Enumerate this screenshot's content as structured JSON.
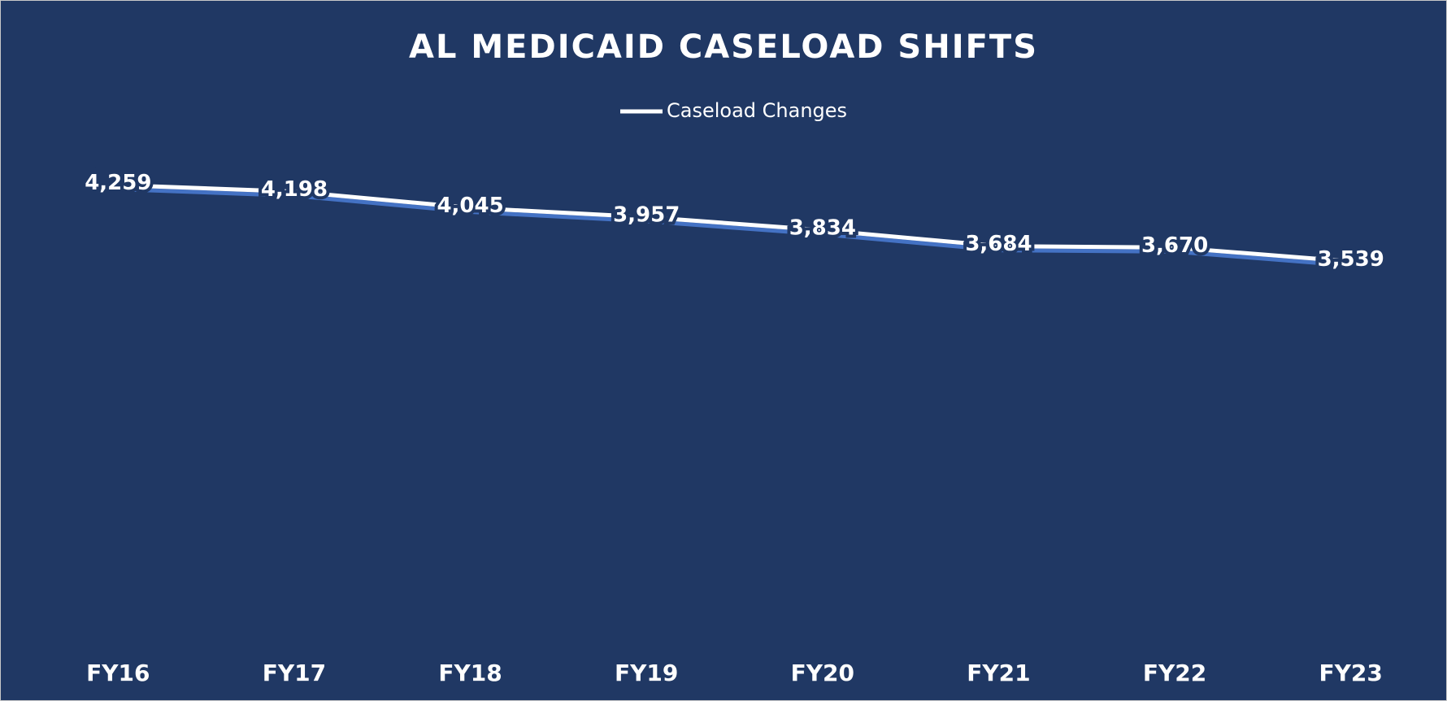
{
  "chart_data": {
    "type": "line",
    "title": "AL MEDICAID CASELOAD SHIFTS",
    "categories": [
      "FY16",
      "FY17",
      "FY18",
      "FY19",
      "FY20",
      "FY21",
      "FY22",
      "FY23"
    ],
    "series": [
      {
        "name": "Caseload Changes",
        "color": "#ffffff",
        "values": [
          4259,
          4198,
          4045,
          3957,
          3834,
          3684,
          3670,
          3539
        ],
        "value_labels": [
          "4,259",
          "4,198",
          "4,045",
          "3,957",
          "3,834",
          "3,684",
          "3,670",
          "3,539"
        ]
      }
    ],
    "ylim": [
      0,
      5000
    ],
    "drop_lines": true,
    "legend": "top"
  }
}
